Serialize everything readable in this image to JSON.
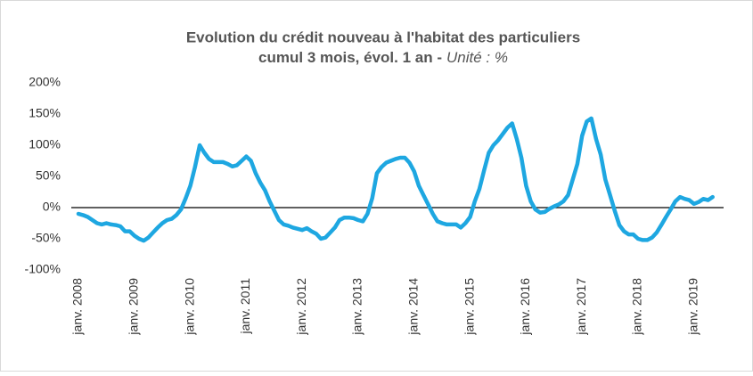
{
  "chart_data": {
    "type": "line",
    "title": "Evolution du crédit nouveau à l'habitat des particuliers",
    "subtitle": "cumul 3 mois, évol. 1 an -",
    "unit_note": "Unité : %",
    "categories": [
      "janv. 2008",
      null,
      null,
      null,
      null,
      null,
      null,
      null,
      null,
      null,
      null,
      null,
      "janv. 2009",
      null,
      null,
      null,
      null,
      null,
      null,
      null,
      null,
      null,
      null,
      null,
      "janv. 2010",
      null,
      null,
      null,
      null,
      null,
      null,
      null,
      null,
      null,
      null,
      null,
      "janv. 2011",
      null,
      null,
      null,
      null,
      null,
      null,
      null,
      null,
      null,
      null,
      null,
      "janv. 2012",
      null,
      null,
      null,
      null,
      null,
      null,
      null,
      null,
      null,
      null,
      null,
      "janv. 2013",
      null,
      null,
      null,
      null,
      null,
      null,
      null,
      null,
      null,
      null,
      null,
      "janv. 2014",
      null,
      null,
      null,
      null,
      null,
      null,
      null,
      null,
      null,
      null,
      null,
      "janv. 2015",
      null,
      null,
      null,
      null,
      null,
      null,
      null,
      null,
      null,
      null,
      null,
      "janv. 2016",
      null,
      null,
      null,
      null,
      null,
      null,
      null,
      null,
      null,
      null,
      null,
      "janv. 2017",
      null,
      null,
      null,
      null,
      null,
      null,
      null,
      null,
      null,
      null,
      null,
      "janv. 2018",
      null,
      null,
      null,
      null,
      null,
      null,
      null,
      null,
      null,
      null,
      null,
      "janv. 2019",
      null,
      null,
      null,
      null
    ],
    "series": [
      {
        "name": "Crédit nouveau",
        "color": "#1ea7e1",
        "values": [
          -10,
          -12,
          -15,
          -20,
          -25,
          -27,
          -25,
          -27,
          -28,
          -30,
          -38,
          -38,
          -45,
          -50,
          -53,
          -48,
          -40,
          -32,
          -25,
          -20,
          -18,
          -12,
          -3,
          15,
          35,
          65,
          100,
          88,
          78,
          73,
          73,
          73,
          70,
          66,
          68,
          75,
          82,
          75,
          55,
          40,
          28,
          10,
          -5,
          -20,
          -27,
          -29,
          -32,
          -34,
          -36,
          -33,
          -38,
          -42,
          -50,
          -48,
          -40,
          -32,
          -20,
          -16,
          -16,
          -17,
          -20,
          -22,
          -10,
          15,
          55,
          65,
          72,
          75,
          78,
          80,
          80,
          72,
          58,
          35,
          20,
          5,
          -10,
          -22,
          -25,
          -27,
          -27,
          -27,
          -32,
          -25,
          -15,
          10,
          30,
          60,
          88,
          100,
          108,
          118,
          128,
          135,
          110,
          80,
          35,
          10,
          -3,
          -8,
          -7,
          -2,
          2,
          5,
          10,
          20,
          45,
          70,
          115,
          138,
          143,
          110,
          85,
          45,
          20,
          -5,
          -28,
          -38,
          -43,
          -43,
          -50,
          -52,
          -52,
          -48,
          -40,
          -28,
          -15,
          -3,
          10,
          17,
          14,
          12,
          6,
          9,
          14,
          12,
          17
        ]
      }
    ],
    "ylim": [
      -100,
      200
    ],
    "yticks": [
      {
        "value": -100,
        "label": "-100%"
      },
      {
        "value": -50,
        "label": "-50%"
      },
      {
        "value": 0,
        "label": "0%"
      },
      {
        "value": 50,
        "label": "50%"
      },
      {
        "value": 100,
        "label": "100%"
      },
      {
        "value": 150,
        "label": "150%"
      },
      {
        "value": 200,
        "label": "200%"
      }
    ]
  }
}
